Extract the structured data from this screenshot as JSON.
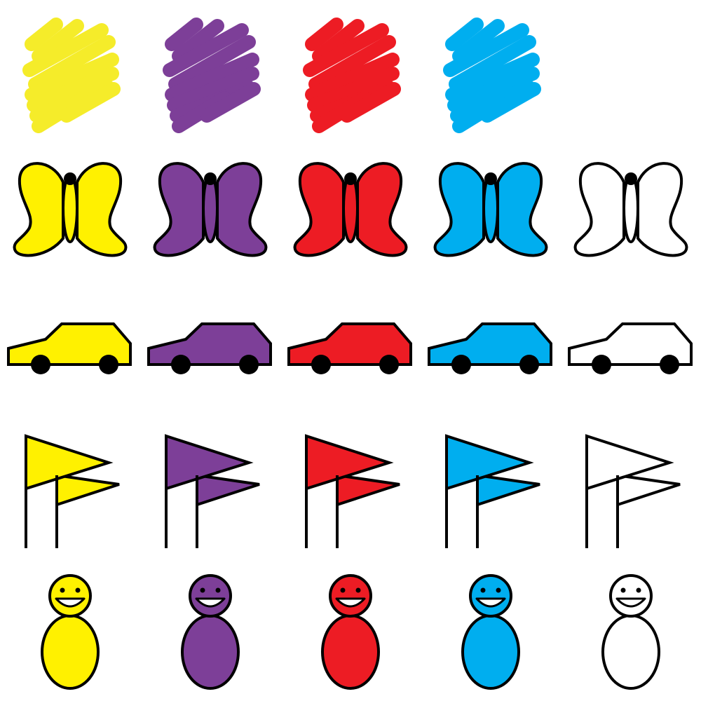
{
  "palette": {
    "yellow": "#FFF100",
    "purple": "#7D3F98",
    "red": "#ED1C24",
    "blue": "#00AEEF",
    "white": "#FFFFFF",
    "scribble_yellow": "#F5EC2A",
    "stroke": "#000000"
  },
  "rows": [
    {
      "name": "scribble",
      "colors": [
        "scribble_yellow",
        "purple",
        "red",
        "blue"
      ]
    },
    {
      "name": "butterfly",
      "colors": [
        "yellow",
        "purple",
        "red",
        "blue",
        "white"
      ]
    },
    {
      "name": "car",
      "colors": [
        "yellow",
        "purple",
        "red",
        "blue",
        "white"
      ]
    },
    {
      "name": "flag",
      "colors": [
        "yellow",
        "purple",
        "red",
        "blue",
        "white"
      ]
    },
    {
      "name": "person",
      "colors": [
        "yellow",
        "purple",
        "red",
        "blue",
        "white"
      ]
    }
  ],
  "icons": {
    "scribble": "scribble-swatch-icon",
    "butterfly": "butterfly-icon",
    "car": "car-icon",
    "flag": "double-flag-icon",
    "person": "smiling-person-icon"
  }
}
